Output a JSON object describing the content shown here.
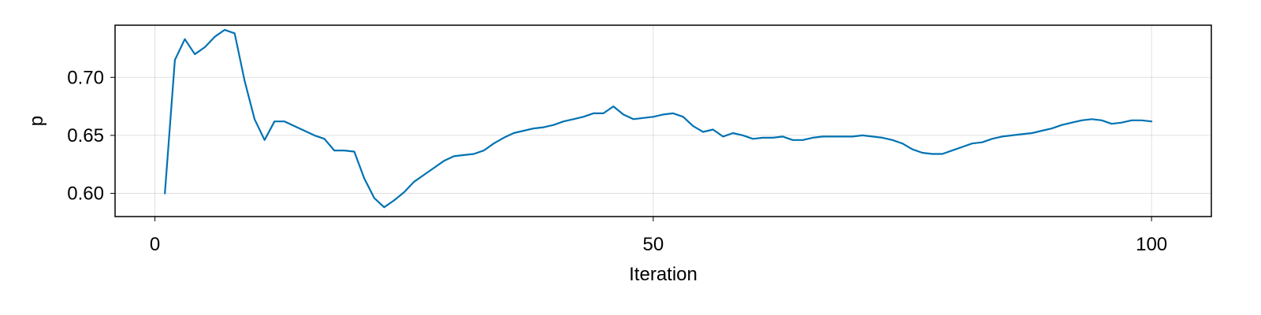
{
  "chart_data": {
    "type": "line",
    "xlabel": "Iteration",
    "ylabel": "p",
    "xlim": [
      -4,
      106
    ],
    "ylim": [
      0.58,
      0.745
    ],
    "x_ticks": [
      0,
      50,
      100
    ],
    "x_tick_labels": [
      "0",
      "50",
      "100"
    ],
    "y_ticks": [
      0.6,
      0.65,
      0.7
    ],
    "y_tick_labels": [
      "0.60",
      "0.65",
      "0.70"
    ],
    "grid": true,
    "series": [
      {
        "color": "#0072b2",
        "x": [
          1,
          2,
          3,
          4,
          5,
          6,
          7,
          8,
          9,
          10,
          11,
          12,
          13,
          14,
          15,
          16,
          17,
          18,
          19,
          20,
          21,
          22,
          23,
          24,
          25,
          26,
          27,
          28,
          29,
          30,
          31,
          32,
          33,
          34,
          35,
          36,
          37,
          38,
          39,
          40,
          41,
          42,
          43,
          44,
          45,
          46,
          47,
          48,
          49,
          50,
          51,
          52,
          53,
          54,
          55,
          56,
          57,
          58,
          59,
          60,
          61,
          62,
          63,
          64,
          65,
          66,
          67,
          68,
          69,
          70,
          71,
          72,
          73,
          74,
          75,
          76,
          77,
          78,
          79,
          80,
          81,
          82,
          83,
          84,
          85,
          86,
          87,
          88,
          89,
          90,
          91,
          92,
          93,
          94,
          95,
          96,
          97,
          98,
          99,
          100
        ],
        "y": [
          0.6,
          0.715,
          0.733,
          0.72,
          0.726,
          0.735,
          0.741,
          0.738,
          0.697,
          0.664,
          0.646,
          0.662,
          0.662,
          0.658,
          0.654,
          0.65,
          0.647,
          0.637,
          0.637,
          0.636,
          0.613,
          0.596,
          0.588,
          0.594,
          0.601,
          0.61,
          0.616,
          0.622,
          0.628,
          0.632,
          0.633,
          0.634,
          0.637,
          0.643,
          0.648,
          0.652,
          0.654,
          0.656,
          0.657,
          0.659,
          0.662,
          0.664,
          0.666,
          0.669,
          0.669,
          0.675,
          0.668,
          0.664,
          0.665,
          0.666,
          0.668,
          0.669,
          0.666,
          0.658,
          0.653,
          0.655,
          0.649,
          0.652,
          0.65,
          0.647,
          0.648,
          0.648,
          0.649,
          0.646,
          0.646,
          0.648,
          0.649,
          0.649,
          0.649,
          0.649,
          0.65,
          0.649,
          0.648,
          0.646,
          0.643,
          0.638,
          0.635,
          0.634,
          0.634,
          0.637,
          0.64,
          0.643,
          0.644,
          0.647,
          0.649,
          0.65,
          0.651,
          0.652,
          0.654,
          0.656,
          0.659,
          0.661,
          0.663,
          0.664,
          0.663,
          0.66,
          0.661,
          0.663,
          0.663,
          0.662
        ]
      }
    ]
  }
}
